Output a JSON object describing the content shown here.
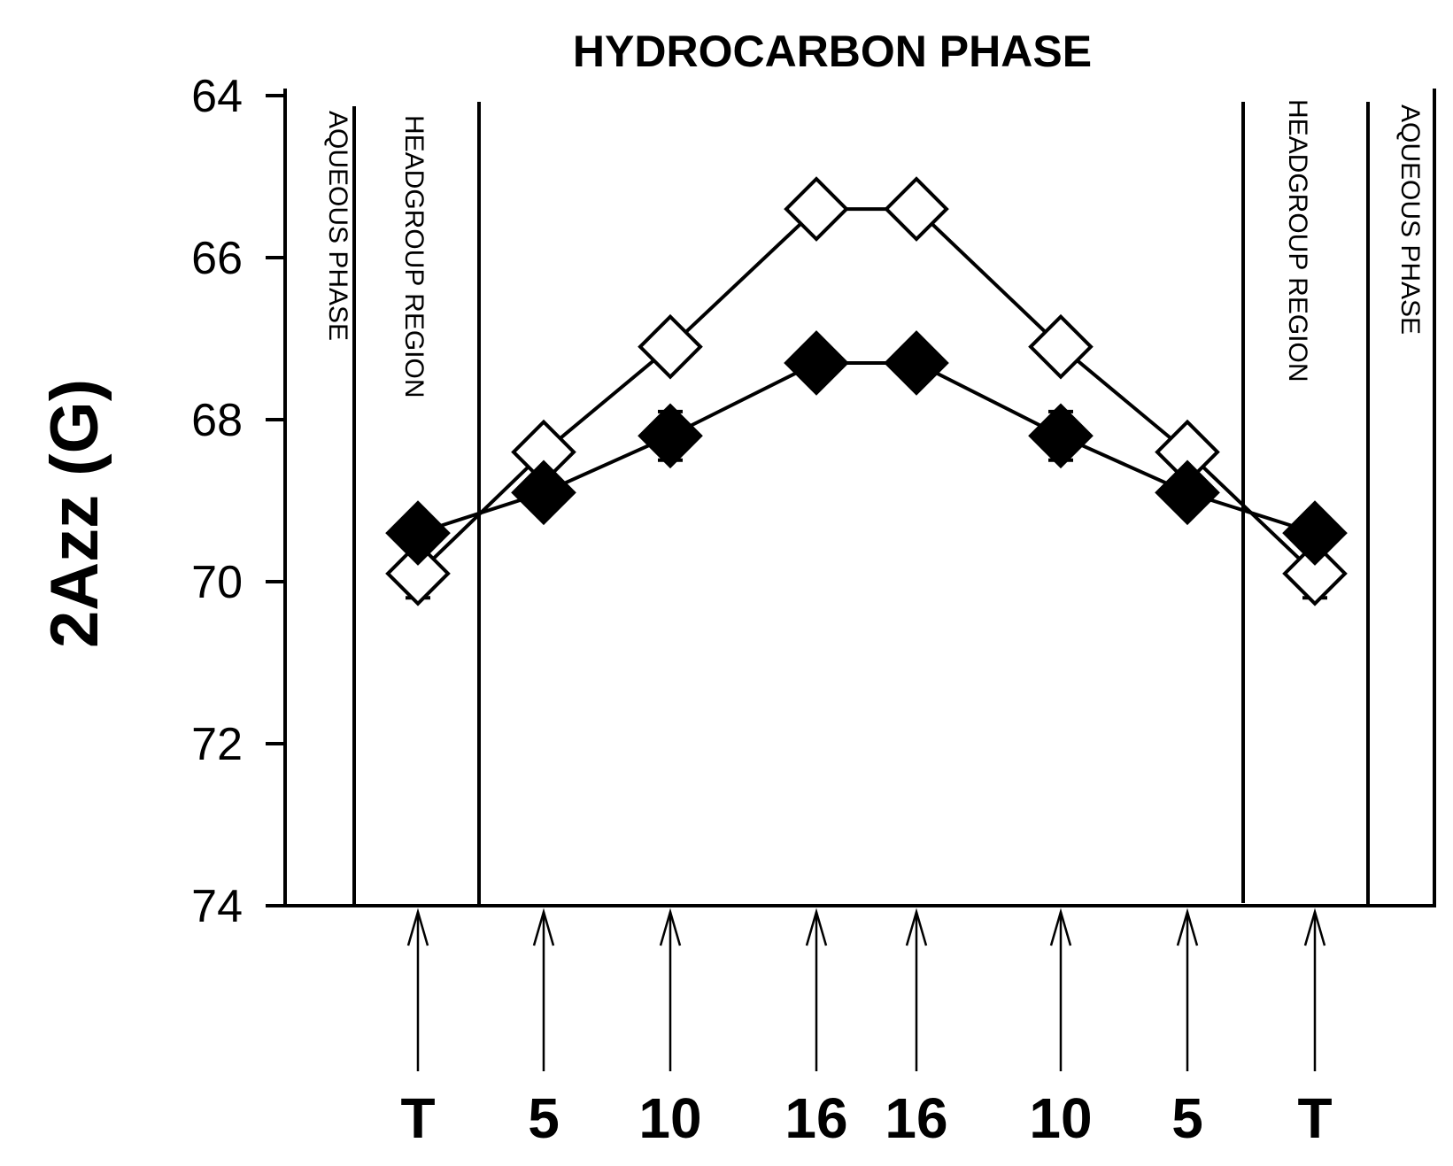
{
  "chart_data": {
    "type": "line",
    "title": "HYDROCARBON PHASE",
    "ylabel": "2Azz (G)",
    "xlabel": "",
    "y_inverted": true,
    "ylim": [
      64,
      74
    ],
    "yticks": [
      "64",
      "66",
      "68",
      "70",
      "72",
      "74"
    ],
    "categories": [
      "T",
      "5",
      "10",
      "16",
      "16",
      "10",
      "5",
      "T"
    ],
    "series": [
      {
        "marker": "open-diamond",
        "values": [
          69.9,
          68.4,
          67.1,
          65.4,
          65.4,
          67.1,
          68.4,
          69.9
        ],
        "errors": [
          0.3,
          0.1,
          0.1,
          0.05,
          0.05,
          0.1,
          0.1,
          0.3
        ]
      },
      {
        "marker": "filled-diamond",
        "values": [
          69.4,
          68.9,
          68.2,
          67.3,
          67.3,
          68.2,
          68.9,
          69.4
        ],
        "errors": [
          0.2,
          0.1,
          0.3,
          0.1,
          0.1,
          0.3,
          0.1,
          0.2
        ]
      }
    ],
    "region_labels": {
      "left_aqueous": "AQUEOUS PHASE",
      "left_headgroup": "HEADGROUP REGION",
      "right_headgroup": "HEADGROUP REGION",
      "right_aqueous": "AQUEOUS PHASE"
    },
    "grid": false,
    "legend": "none"
  }
}
